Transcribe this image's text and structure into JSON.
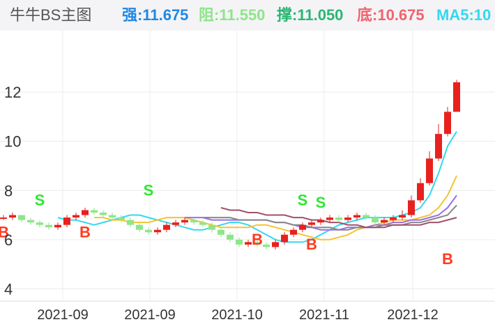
{
  "header": {
    "title": "牛牛BS主图",
    "indicators": [
      {
        "label": "强",
        "value": "11.675",
        "color": "#1e88e5"
      },
      {
        "label": "阻",
        "value": "11.550",
        "color": "#8fe48a"
      },
      {
        "label": "撑",
        "value": "11.050",
        "color": "#2bb673"
      },
      {
        "label": "底",
        "value": "10.675",
        "color": "#f0646e"
      },
      {
        "label": "MA5",
        "value": "10",
        "color": "#34d8ee"
      }
    ]
  },
  "chart_data": {
    "type": "candlestick",
    "x_tick_labels": [
      "2021-09",
      "2021-09",
      "2021-10",
      "2021-11",
      "2021-12"
    ],
    "ylim": [
      3.5,
      14.5
    ],
    "y_ticks": [
      4,
      6,
      8,
      10,
      12
    ],
    "candles": [
      [
        6.9,
        6.9,
        7.0,
        6.8
      ],
      [
        6.9,
        7.0,
        7.1,
        6.8
      ],
      [
        7.0,
        6.8,
        7.0,
        6.7
      ],
      [
        6.8,
        6.7,
        6.9,
        6.6
      ],
      [
        6.7,
        6.6,
        6.8,
        6.5
      ],
      [
        6.6,
        6.5,
        6.7,
        6.4
      ],
      [
        6.5,
        6.6,
        6.7,
        6.4
      ],
      [
        6.6,
        6.9,
        7.0,
        6.5
      ],
      [
        6.9,
        7.0,
        7.1,
        6.8
      ],
      [
        7.0,
        7.2,
        7.3,
        6.9
      ],
      [
        7.2,
        7.1,
        7.3,
        7.0
      ],
      [
        7.1,
        7.0,
        7.2,
        6.9
      ],
      [
        7.0,
        6.9,
        7.1,
        6.8
      ],
      [
        6.9,
        6.8,
        7.0,
        6.7
      ],
      [
        6.8,
        6.6,
        6.9,
        6.5
      ],
      [
        6.6,
        6.4,
        6.7,
        6.3
      ],
      [
        6.4,
        6.3,
        6.5,
        6.2
      ],
      [
        6.3,
        6.4,
        6.5,
        6.2
      ],
      [
        6.4,
        6.6,
        6.7,
        6.3
      ],
      [
        6.6,
        6.7,
        6.8,
        6.5
      ],
      [
        6.7,
        6.8,
        6.9,
        6.6
      ],
      [
        6.8,
        6.7,
        6.9,
        6.6
      ],
      [
        6.7,
        6.6,
        6.8,
        6.5
      ],
      [
        6.6,
        6.4,
        6.7,
        6.3
      ],
      [
        6.4,
        6.2,
        6.5,
        6.1
      ],
      [
        6.2,
        6.0,
        6.3,
        5.9
      ],
      [
        6.0,
        5.8,
        6.1,
        5.7
      ],
      [
        5.8,
        5.9,
        6.0,
        5.7
      ],
      [
        5.9,
        5.8,
        6.0,
        5.7
      ],
      [
        5.8,
        5.7,
        5.9,
        5.6
      ],
      [
        5.7,
        5.9,
        6.0,
        5.6
      ],
      [
        5.9,
        6.2,
        6.3,
        5.8
      ],
      [
        6.2,
        6.4,
        6.5,
        6.1
      ],
      [
        6.4,
        6.6,
        6.7,
        6.3
      ],
      [
        6.6,
        6.7,
        6.8,
        6.5
      ],
      [
        6.7,
        6.8,
        6.9,
        6.6
      ],
      [
        6.8,
        6.9,
        7.0,
        6.7
      ],
      [
        6.9,
        6.8,
        7.0,
        6.7
      ],
      [
        6.8,
        6.9,
        7.0,
        6.7
      ],
      [
        6.9,
        7.0,
        7.1,
        6.8
      ],
      [
        7.0,
        6.9,
        7.1,
        6.8
      ],
      [
        6.9,
        6.7,
        7.0,
        6.6
      ],
      [
        6.7,
        6.8,
        6.9,
        6.6
      ],
      [
        6.8,
        6.9,
        7.0,
        6.7
      ],
      [
        6.9,
        7.0,
        7.2,
        6.8
      ],
      [
        7.0,
        7.6,
        7.8,
        6.9
      ],
      [
        7.6,
        8.3,
        8.5,
        7.5
      ],
      [
        8.3,
        9.3,
        9.6,
        8.2
      ],
      [
        9.3,
        10.3,
        10.7,
        9.2
      ],
      [
        10.3,
        11.2,
        11.4,
        10.2
      ],
      [
        11.2,
        12.4,
        12.5,
        11.2
      ]
    ],
    "ma_series": [
      {
        "name": "MA5",
        "color": "#34d8ee",
        "values": [
          6.9,
          6.8,
          6.8,
          6.7,
          6.6,
          6.7,
          6.8,
          6.9,
          7.0,
          7.0,
          6.9,
          6.8,
          6.7,
          6.6,
          6.5,
          6.4,
          6.4,
          6.5,
          6.6,
          6.7,
          6.7,
          6.6,
          6.4,
          6.2,
          6.0,
          5.9,
          5.9,
          5.9,
          6.0,
          6.2,
          6.4,
          6.6,
          6.7,
          6.8,
          6.9,
          6.9,
          6.9,
          6.9,
          7.0,
          7.1,
          7.3,
          7.8,
          8.7,
          9.8,
          10.4
        ]
      },
      {
        "name": "MA10",
        "color": "#f4c430",
        "values": [
          6.9,
          6.9,
          6.8,
          6.8,
          6.7,
          6.7,
          6.7,
          6.8,
          6.9,
          6.9,
          6.9,
          6.8,
          6.7,
          6.6,
          6.5,
          6.5,
          6.5,
          6.5,
          6.6,
          6.6,
          6.5,
          6.4,
          6.3,
          6.2,
          6.1,
          6.0,
          6.0,
          6.1,
          6.2,
          6.4,
          6.5,
          6.6,
          6.7,
          6.8,
          6.8,
          6.8,
          6.9,
          7.0,
          7.3,
          7.8,
          8.6
        ]
      },
      {
        "name": "MA20",
        "color": "#9b6ee6",
        "values": [
          6.9,
          6.9,
          6.9,
          6.8,
          6.8,
          6.8,
          6.8,
          6.8,
          6.8,
          6.8,
          6.7,
          6.7,
          6.6,
          6.5,
          6.5,
          6.4,
          6.4,
          6.4,
          6.5,
          6.5,
          6.5,
          6.6,
          6.6,
          6.7,
          6.7,
          6.8,
          6.8,
          6.9,
          7.0,
          7.3,
          7.8
        ]
      },
      {
        "name": "MA30",
        "color": "#888888",
        "values": [
          6.9,
          6.9,
          6.9,
          6.9,
          6.8,
          6.8,
          6.8,
          6.8,
          6.7,
          6.7,
          6.6,
          6.6,
          6.5,
          6.5,
          6.5,
          6.4,
          6.4,
          6.5,
          6.5,
          6.5,
          6.6,
          6.6,
          6.6,
          6.7,
          6.7,
          6.8,
          6.9,
          7.0,
          7.4
        ]
      },
      {
        "name": "MA60",
        "color": "#a05068",
        "values": [
          7.3,
          7.2,
          7.2,
          7.1,
          7.1,
          7.0,
          7.0,
          7.0,
          6.9,
          6.9,
          6.8,
          6.8,
          6.7,
          6.7,
          6.6,
          6.6,
          6.5,
          6.5,
          6.5,
          6.6,
          6.6,
          6.6,
          6.6,
          6.7,
          6.7,
          6.8,
          6.9
        ]
      }
    ],
    "signals": [
      {
        "type": "B",
        "index": 0,
        "y": 6.1
      },
      {
        "type": "S",
        "index": 4,
        "y": 7.4
      },
      {
        "type": "B",
        "index": 9,
        "y": 6.1
      },
      {
        "type": "S",
        "index": 16,
        "y": 7.8
      },
      {
        "type": "B",
        "index": 28,
        "y": 5.8
      },
      {
        "type": "S",
        "index": 33,
        "y": 7.4
      },
      {
        "type": "S",
        "index": 35,
        "y": 7.3
      },
      {
        "type": "B",
        "index": 34,
        "y": 5.6
      },
      {
        "type": "B",
        "index": 49,
        "y": 5.0
      }
    ]
  }
}
